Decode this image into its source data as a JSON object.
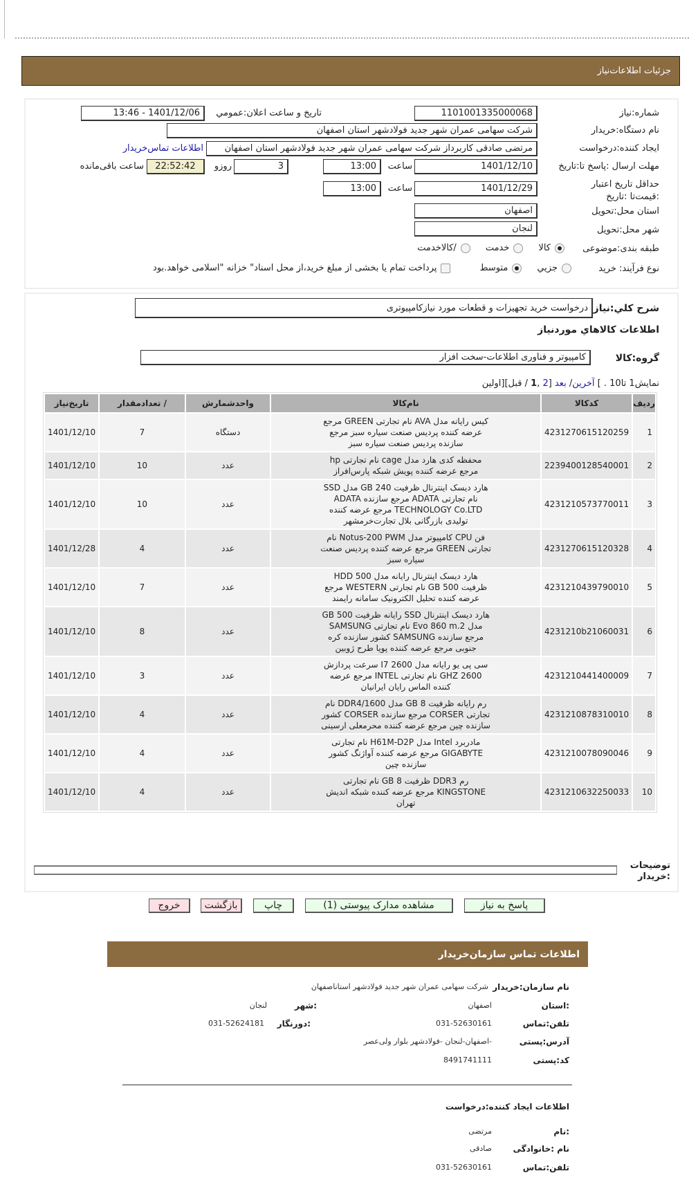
{
  "header": {
    "title": "جزئیات  اطلاعات‌نیاز"
  },
  "need": {
    "number_label": "شماره:نیاز",
    "number": "1101001335000068",
    "announce_label": "تاریخ و ساعت اعلان:عمومي",
    "announce": "1401/12/06 - 13:46",
    "buyer_label": "نام دستگاه:خریدار",
    "buyer": "شرکت سهامی عمران شهر جدید فولادشهر استان اصفهان",
    "creator_label": "ایجاد کننده:درخواست",
    "creator": "مرتضی صادقی کاربرداز شرکت سهامی عمران شهر جدید فولادشهر استان اصفهان",
    "contact_link": "اطلاعات تماس‌خریدار",
    "deadline_label": "مهلت ارسال :پاسخ تا:تاریخ",
    "deadline_date": "1401/12/10",
    "time_label": "ساعت",
    "deadline_time": "13:00",
    "days": "3",
    "days_label": "روزو",
    "remaining": "22:52:42",
    "remaining_label": "ساعت باقی‌مانده",
    "validity_label": "حداقل تاریخ اعتبار :قیمت‌تا :تاریخ",
    "validity_date": "1401/12/29",
    "validity_time": "13:00",
    "province_label": "استان محل:تحویل",
    "province": "اصفهان",
    "city_label": "شهر محل:تحویل",
    "city": "لنجان",
    "category_label": "طبقه بندی:موضوعی",
    "category_options": [
      "کالا",
      "خدمت",
      "/کالاخدمت"
    ],
    "category_selected": "کالا",
    "process_label": "نوع فرآیند: خرید",
    "process_options": [
      "جزيي",
      "متوسط"
    ],
    "process_selected": "متوسط",
    "treasury_note": "پرداخت تمام یا بخشی از مبلغ خرید،از محل اسناد\" خزانه \"اسلامی خواهد.بود"
  },
  "description": {
    "label": "شرح کلي:نیاز",
    "value": "درخواست خرید تجهیزات و قطعات مورد نیازکامپیوتری"
  },
  "goods": {
    "heading": "اطلاعات کالاهاي موردنیاز",
    "group_label": "گروه:کالا",
    "group": "کامپیوتر و فناوری اطلاعات-سخت افزار",
    "pager": {
      "prefix": "نمایش1 تا10 . ] ",
      "last": "آخرین",
      "sep": "/ ",
      "next": "بعد",
      "pages_open": " [",
      "page2": "2",
      "comma": " ,",
      "page1": "1",
      "rest": " / قبل][اولین"
    },
    "columns": [
      "ردیف",
      "کدکالا",
      "نام‌کالا",
      "واحدشمارش",
      "/ تعدادمقدار",
      "تاریخ‌نیاز"
    ],
    "rows": [
      {
        "idx": "1",
        "code": "4231270615120259",
        "name": "کیس رایانه مدل AVA نام تجارتی GREEN مرجع عرضه کننده پردیس صنعت سیاره سبز مرجع سازنده پردیس صنعت سیاره سبز",
        "unit": "دستگاه",
        "qty": "7",
        "date": "1401/12/10"
      },
      {
        "idx": "2",
        "code": "2239400128540001",
        "name": "محفظه کدی هارد مدل cage نام تجارتی hp مرجع عرضه کننده پویش شبکه پارس‌افراز",
        "unit": "عدد",
        "qty": "10",
        "date": "1401/12/10"
      },
      {
        "idx": "3",
        "code": "4231210573770011",
        "name": "هارد دیسک اینترنال ظرفیت 240 GB مدل SSD نام تجارتی ADATA مرجع سازنده ADATA TECHNOLOGY Co.LTD مرجع عرضه کننده تولیدی بازرگانی بلال تجارت‌خرمشهر",
        "unit": "عدد",
        "qty": "10",
        "date": "1401/12/10"
      },
      {
        "idx": "4",
        "code": "4231270615120328",
        "name": "فن CPU کامپیوتر مدل Notus-200 PWM نام تجارتی GREEN مرجع عرضه کننده پردیس صنعت سیاره سبز",
        "unit": "عدد",
        "qty": "4",
        "date": "1401/12/28"
      },
      {
        "idx": "5",
        "code": "4231210439790010",
        "name": "هارد دیسک اینترنال رایانه مدل HDD 500 ظرفیت 500 GB نام تجارتی WESTERN مرجع عرضه کننده تحلیل الکترونیک سامانه رایمند",
        "unit": "عدد",
        "qty": "7",
        "date": "1401/12/10"
      },
      {
        "idx": "6",
        "code": "4231210b21060031",
        "name": "هارد دیسک اینترنال SSD رایانه ظرفیت 500 GB مدل Evo 860 m.2 نام تجارتی SAMSUNG مرجع سازنده SAMSUNG کشور سازنده کره جنوبی مرجع عرضه کننده پویا طرح ژوبین",
        "unit": "عدد",
        "qty": "8",
        "date": "1401/12/10"
      },
      {
        "idx": "7",
        "code": "4231210441400009",
        "name": "سی پی یو رایانه مدل I7 2600 سرعت پردازش 2600 GHZ نام تجارتی INTEL مرجع عرضه کننده الماس رایان ایرانیان",
        "unit": "عدد",
        "qty": "3",
        "date": "1401/12/10"
      },
      {
        "idx": "8",
        "code": "4231210878310010",
        "name": "رم رایانه ظرفیت 8 GB مدل DDR4/1600 نام تجارتی CORSER مرجع سازنده CORSER کشور سازنده چین مرجع عرضه کننده محرمعلی ارسینی",
        "unit": "عدد",
        "qty": "4",
        "date": "1401/12/10"
      },
      {
        "idx": "9",
        "code": "4231210078090046",
        "name": "مادربرد Intel مدل H61M-D2P نام تجارتی GIGABYTE مرجع عرضه کننده آواژنگ کشور سازنده چین",
        "unit": "عدد",
        "qty": "4",
        "date": "1401/12/10"
      },
      {
        "idx": "10",
        "code": "4231210632250033",
        "name": "رم DDR3 ظرفیت 8 GB نام تجارتی KINGSTONE مرجع عرضه کننده شبکه اندیش تهران",
        "unit": "عدد",
        "qty": "4",
        "date": "1401/12/10"
      }
    ]
  },
  "remarks": {
    "label": "توضیحات :خریدار",
    "value": ""
  },
  "buttons": {
    "reply": "پاسخ به نیاز",
    "attachments": "مشاهده مدارک پیوستی (1)",
    "print": "چاپ",
    "back": "بازگشت",
    "exit": "خروج"
  },
  "contact": {
    "title": "اطلاعات  تماس سازمان‌خریدار",
    "org_label": "نام سازمان:خریدار",
    "org": "شرکت سهامی عمران شهر جدید فولادشهر استاناصفهان",
    "province_label": ":استان",
    "province": "اصفهان",
    "city_label": ":شهر",
    "city": "لنجان",
    "phone_label": "تلفن:تماس",
    "phone": "031-52630161",
    "fax_label": ":دورنگار",
    "fax": "031-52624181",
    "address_label": "آدرس:پستی",
    "address": "-اصفهان-لنجان -فولادشهر بلوار ولی‌عصر",
    "postal_label": "کد:پستی",
    "postal": "8491741111",
    "creator_title": "اطلاعات ایجاد کننده:درخواست",
    "name_label": ":نام",
    "name": "مرتضی",
    "family_label": "نام :خانوادگی",
    "family": "صادقی",
    "creator_phone_label": "تلفن:تماس",
    "creator_phone": "031-52630161"
  },
  "colors": {
    "banner": "#8b6b40",
    "remaining_bg": "#f3efcc",
    "btn_green": "#e9fde9",
    "btn_pink": "#fde0e4",
    "link": "#1a1aa6"
  }
}
